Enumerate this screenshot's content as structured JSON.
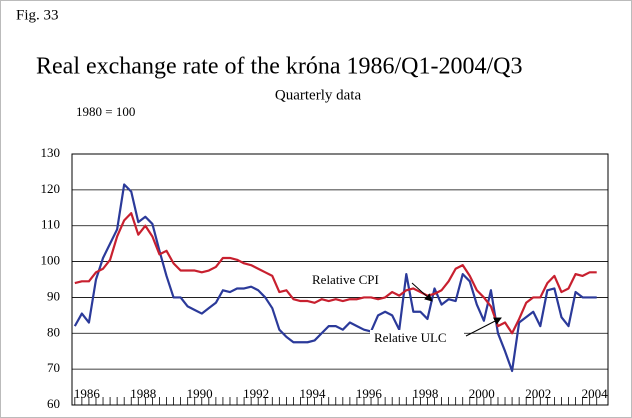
{
  "chart_data": {
    "type": "line",
    "fig_label": "Fig. 33",
    "title": "Real exchange rate of the króna 1986/Q1-2004/Q3",
    "subtitle": "Quarterly data",
    "y_label": "1980 = 100",
    "x": [
      1986,
      1986.25,
      1986.5,
      1986.75,
      1987,
      1987.25,
      1987.5,
      1987.75,
      1988,
      1988.25,
      1988.5,
      1988.75,
      1989,
      1989.25,
      1989.5,
      1989.75,
      1990,
      1990.25,
      1990.5,
      1990.75,
      1991,
      1991.25,
      1991.5,
      1991.75,
      1992,
      1992.25,
      1992.5,
      1992.75,
      1993,
      1993.25,
      1993.5,
      1993.75,
      1994,
      1994.25,
      1994.5,
      1994.75,
      1995,
      1995.25,
      1995.5,
      1995.75,
      1996,
      1996.25,
      1996.5,
      1996.75,
      1997,
      1997.25,
      1997.5,
      1997.75,
      1998,
      1998.25,
      1998.5,
      1998.75,
      1999,
      1999.25,
      1999.5,
      1999.75,
      2000,
      2000.25,
      2000.5,
      2000.75,
      2001,
      2001.25,
      2001.5,
      2001.75,
      2002,
      2002.25,
      2002.5,
      2002.75,
      2003,
      2003.25,
      2003.5,
      2003.75,
      2004,
      2004.25,
      2004.5
    ],
    "series": [
      {
        "name": "Relative ULC",
        "color": "#2b3a9a",
        "values": [
          82,
          85.5,
          83,
          95,
          101,
          105,
          109,
          121.5,
          119.5,
          111,
          112.5,
          110.5,
          103,
          96,
          90,
          90,
          87.5,
          86.5,
          85.5,
          87,
          88.5,
          92,
          91.5,
          92.5,
          92.5,
          93,
          92,
          90,
          87,
          81,
          79,
          77.5,
          77.5,
          77.5,
          78,
          80,
          82,
          82,
          81,
          83,
          82,
          81,
          80.5,
          85,
          86,
          85,
          81,
          96.5,
          86,
          86,
          84,
          92.5,
          88,
          89.5,
          89,
          96.5,
          94.5,
          88,
          83.5,
          92,
          80,
          75,
          69.5,
          83,
          84.5,
          86,
          82,
          92,
          92.5,
          84.5,
          82,
          91.5,
          90,
          90,
          90
        ]
      },
      {
        "name": "Relative CPI",
        "color": "#c8202f",
        "values": [
          94,
          94.5,
          94.5,
          97,
          98,
          100.5,
          107,
          111.5,
          113.5,
          107.5,
          110,
          107,
          102,
          103,
          99.5,
          97.5,
          97.5,
          97.5,
          97,
          97.5,
          98.5,
          101,
          101,
          100.5,
          99.5,
          99,
          98,
          97,
          96,
          91.5,
          92,
          89.5,
          89,
          89,
          88.5,
          89.5,
          89,
          89.5,
          89,
          89.5,
          89.5,
          90,
          90,
          89.5,
          90,
          91.5,
          90.5,
          92,
          92.5,
          91.5,
          90.5,
          91,
          92,
          94.5,
          98,
          99,
          96,
          92,
          90,
          87.5,
          82,
          83,
          80,
          84,
          88.5,
          90,
          90,
          94,
          96,
          91.5,
          92.5,
          96.5,
          96,
          97,
          97
        ]
      }
    ],
    "xlim": [
      1985.9,
      2004.9
    ],
    "xticks": [
      1986,
      1988,
      1990,
      1992,
      1994,
      1996,
      1998,
      2000,
      2002,
      2004
    ],
    "ylim": [
      60,
      130
    ],
    "yticks": [
      60,
      70,
      80,
      90,
      100,
      110,
      120,
      130
    ],
    "grid": true
  }
}
